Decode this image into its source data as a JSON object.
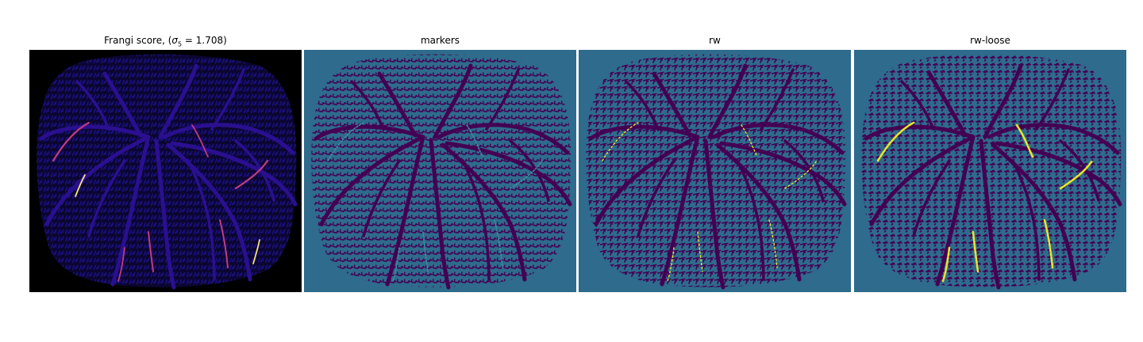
{
  "panels": [
    {
      "title_prefix": "Frangi score, (",
      "title_sym": "σ",
      "title_sub": "5",
      "title_suffix": " = 1.708)",
      "background": "#000000",
      "colormap": "magma"
    },
    {
      "title": "markers",
      "background": "#2e6b8c",
      "colormap": "viridis"
    },
    {
      "title": "rw",
      "background": "#2e6b8c",
      "colormap": "viridis"
    },
    {
      "title": "rw-loose",
      "background": "#2e6b8c",
      "colormap": "viridis"
    }
  ],
  "colors": {
    "dark_purple": "#440154",
    "teal": "#2e6b8c",
    "yellow": "#e8e625",
    "magma_blue": "#1a1080",
    "magma_pink": "#c03b80",
    "magma_yellow": "#f8e27a"
  }
}
